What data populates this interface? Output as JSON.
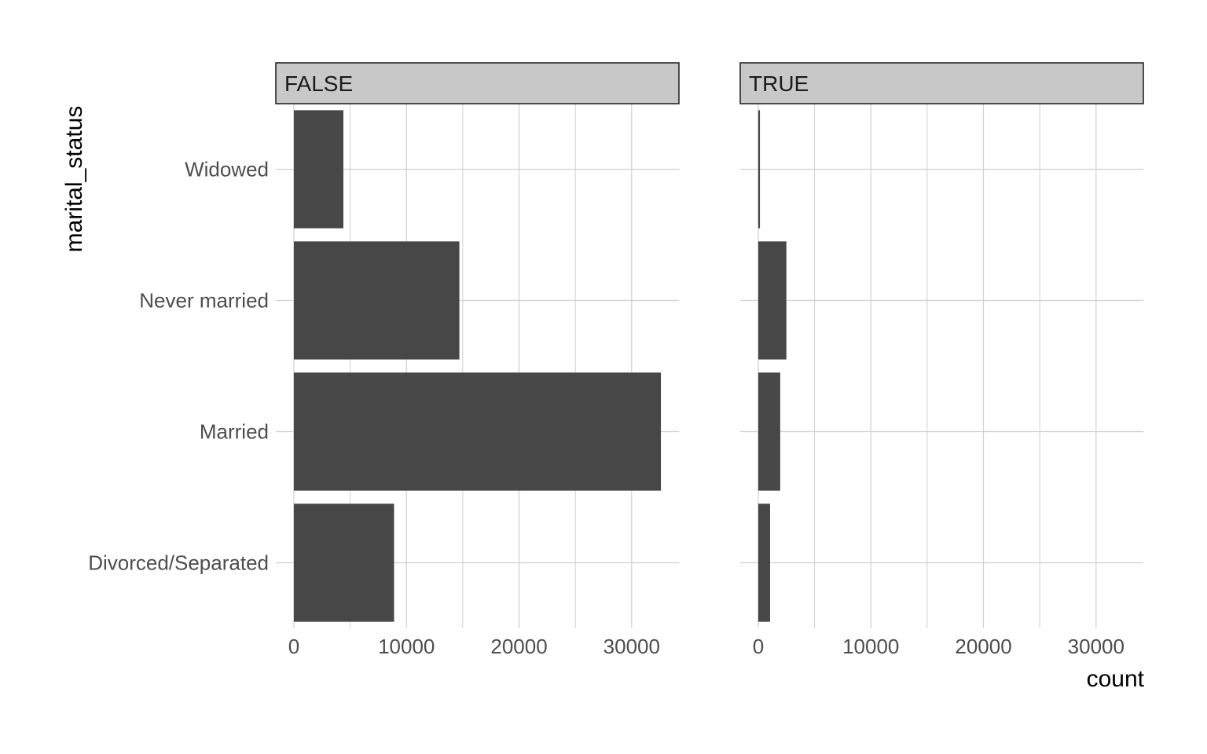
{
  "chart_data": {
    "type": "bar",
    "orientation": "horizontal",
    "facet_variable_values": [
      "FALSE",
      "TRUE"
    ],
    "categories": [
      "Widowed",
      "Never married",
      "Married",
      "Divorced/Separated"
    ],
    "panels": [
      {
        "facet": "FALSE",
        "values": [
          4400,
          14700,
          32600,
          8900
        ]
      },
      {
        "facet": "TRUE",
        "values": [
          150,
          2500,
          1950,
          1050
        ]
      }
    ],
    "xlabel": "count",
    "ylabel": "marital_status",
    "x_ticks": [
      0,
      10000,
      20000,
      30000
    ],
    "x_tick_labels": [
      "0",
      "10000",
      "20000",
      "30000"
    ],
    "xlim": [
      -1600,
      34200
    ],
    "grid": true,
    "bar_color": "#474747",
    "grid_color": "#d0d0d0",
    "strip_fill": "#c8c8c8"
  }
}
